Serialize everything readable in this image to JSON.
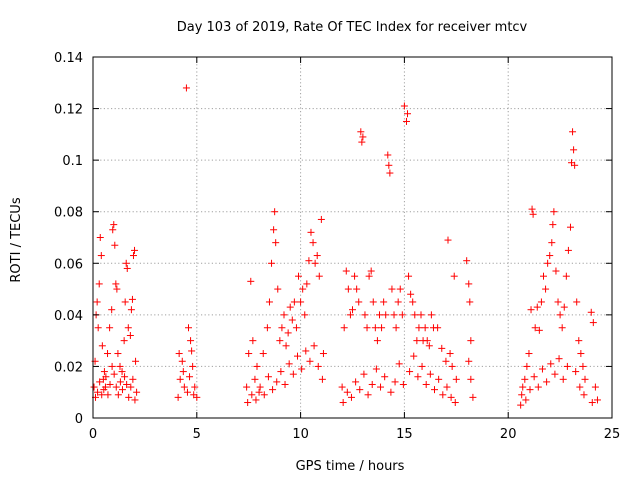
{
  "chart_data": {
    "type": "scatter",
    "title": "Day 103 of 2019, Rate Of TEC Index for receiver mtcv",
    "xlabel": "GPS time / hours",
    "ylabel": "ROTI / TECUs",
    "xlim": [
      0,
      25
    ],
    "ylim": [
      0,
      0.14
    ],
    "xticks": [
      0,
      5,
      10,
      15,
      20,
      25
    ],
    "yticks": [
      0,
      0.02,
      0.04,
      0.06,
      0.08,
      0.1,
      0.12,
      0.14
    ],
    "xtick_labels": [
      "0",
      "5",
      "10",
      "15",
      "20",
      "25"
    ],
    "ytick_labels": [
      "0",
      "0.02",
      "0.04",
      "0.06",
      "0.08",
      "0.1",
      "0.12",
      "0.14"
    ],
    "grid": true,
    "marker": "+",
    "color": "#ff0000",
    "series": [
      {
        "points": [
          [
            0.05,
            0.012
          ],
          [
            0.1,
            0.022
          ],
          [
            0.15,
            0.04
          ],
          [
            0.2,
            0.045
          ],
          [
            0.25,
            0.035
          ],
          [
            0.3,
            0.052
          ],
          [
            0.35,
            0.07
          ],
          [
            0.4,
            0.063
          ],
          [
            0.45,
            0.028
          ],
          [
            0.5,
            0.015
          ],
          [
            0.55,
            0.018
          ],
          [
            0.6,
            0.012
          ],
          [
            0.7,
            0.025
          ],
          [
            0.8,
            0.035
          ],
          [
            0.9,
            0.042
          ],
          [
            0.95,
            0.073
          ],
          [
            1.0,
            0.075
          ],
          [
            1.05,
            0.067
          ],
          [
            1.1,
            0.052
          ],
          [
            1.15,
            0.05
          ],
          [
            1.2,
            0.025
          ],
          [
            1.3,
            0.02
          ],
          [
            1.4,
            0.018
          ],
          [
            1.5,
            0.03
          ],
          [
            1.55,
            0.045
          ],
          [
            1.6,
            0.06
          ],
          [
            1.65,
            0.058
          ],
          [
            1.7,
            0.035
          ],
          [
            1.8,
            0.032
          ],
          [
            1.85,
            0.042
          ],
          [
            1.9,
            0.046
          ],
          [
            1.95,
            0.063
          ],
          [
            2.0,
            0.065
          ],
          [
            2.05,
            0.022
          ],
          [
            2.1,
            0.01
          ],
          [
            0.12,
            0.008
          ],
          [
            0.22,
            0.01
          ],
          [
            0.32,
            0.014
          ],
          [
            0.42,
            0.009
          ],
          [
            0.52,
            0.011
          ],
          [
            0.62,
            0.016
          ],
          [
            0.72,
            0.009
          ],
          [
            0.82,
            0.013
          ],
          [
            0.92,
            0.02
          ],
          [
            1.02,
            0.017
          ],
          [
            1.12,
            0.012
          ],
          [
            1.22,
            0.009
          ],
          [
            1.32,
            0.014
          ],
          [
            1.42,
            0.011
          ],
          [
            1.52,
            0.016
          ],
          [
            1.62,
            0.013
          ],
          [
            1.72,
            0.008
          ],
          [
            1.82,
            0.012
          ],
          [
            1.92,
            0.015
          ],
          [
            2.02,
            0.007
          ],
          [
            4.1,
            0.008
          ],
          [
            4.2,
            0.015
          ],
          [
            4.3,
            0.022
          ],
          [
            4.4,
            0.012
          ],
          [
            4.5,
            0.128
          ],
          [
            4.6,
            0.035
          ],
          [
            4.7,
            0.03
          ],
          [
            4.75,
            0.026
          ],
          [
            4.8,
            0.02
          ],
          [
            4.9,
            0.012
          ],
          [
            5.0,
            0.008
          ],
          [
            4.15,
            0.025
          ],
          [
            4.35,
            0.018
          ],
          [
            4.55,
            0.01
          ],
          [
            4.65,
            0.016
          ],
          [
            4.85,
            0.009
          ],
          [
            7.4,
            0.012
          ],
          [
            7.5,
            0.025
          ],
          [
            7.6,
            0.053
          ],
          [
            7.7,
            0.03
          ],
          [
            7.8,
            0.015
          ],
          [
            7.9,
            0.02
          ],
          [
            8.0,
            0.01
          ],
          [
            8.2,
            0.025
          ],
          [
            8.4,
            0.035
          ],
          [
            8.5,
            0.045
          ],
          [
            8.6,
            0.06
          ],
          [
            8.7,
            0.073
          ],
          [
            8.75,
            0.08
          ],
          [
            8.8,
            0.068
          ],
          [
            8.9,
            0.05
          ],
          [
            9.0,
            0.03
          ],
          [
            9.1,
            0.035
          ],
          [
            9.2,
            0.04
          ],
          [
            9.3,
            0.028
          ],
          [
            9.4,
            0.033
          ],
          [
            9.5,
            0.043
          ],
          [
            9.6,
            0.038
          ],
          [
            9.7,
            0.045
          ],
          [
            9.8,
            0.035
          ],
          [
            9.9,
            0.055
          ],
          [
            10.0,
            0.045
          ],
          [
            10.1,
            0.05
          ],
          [
            10.2,
            0.04
          ],
          [
            10.3,
            0.052
          ],
          [
            10.4,
            0.061
          ],
          [
            10.5,
            0.072
          ],
          [
            10.6,
            0.068
          ],
          [
            10.7,
            0.06
          ],
          [
            10.8,
            0.063
          ],
          [
            10.9,
            0.055
          ],
          [
            11.0,
            0.077
          ],
          [
            11.1,
            0.025
          ],
          [
            7.45,
            0.006
          ],
          [
            7.65,
            0.009
          ],
          [
            7.85,
            0.007
          ],
          [
            8.05,
            0.012
          ],
          [
            8.25,
            0.009
          ],
          [
            8.45,
            0.016
          ],
          [
            8.65,
            0.011
          ],
          [
            8.85,
            0.014
          ],
          [
            9.05,
            0.018
          ],
          [
            9.25,
            0.013
          ],
          [
            9.45,
            0.021
          ],
          [
            9.65,
            0.017
          ],
          [
            9.85,
            0.024
          ],
          [
            10.05,
            0.019
          ],
          [
            10.25,
            0.026
          ],
          [
            10.45,
            0.022
          ],
          [
            10.65,
            0.028
          ],
          [
            10.85,
            0.02
          ],
          [
            11.05,
            0.015
          ],
          [
            12.0,
            0.012
          ],
          [
            12.1,
            0.035
          ],
          [
            12.2,
            0.057
          ],
          [
            12.3,
            0.05
          ],
          [
            12.4,
            0.04
          ],
          [
            12.5,
            0.042
          ],
          [
            12.6,
            0.055
          ],
          [
            12.7,
            0.05
          ],
          [
            12.8,
            0.045
          ],
          [
            12.9,
            0.111
          ],
          [
            12.95,
            0.107
          ],
          [
            13.0,
            0.109
          ],
          [
            13.1,
            0.04
          ],
          [
            13.2,
            0.035
          ],
          [
            13.3,
            0.055
          ],
          [
            13.4,
            0.057
          ],
          [
            13.5,
            0.045
          ],
          [
            13.6,
            0.035
          ],
          [
            13.7,
            0.03
          ],
          [
            13.8,
            0.04
          ],
          [
            13.9,
            0.035
          ],
          [
            14.0,
            0.045
          ],
          [
            14.1,
            0.04
          ],
          [
            14.2,
            0.102
          ],
          [
            14.25,
            0.098
          ],
          [
            14.3,
            0.095
          ],
          [
            14.4,
            0.05
          ],
          [
            14.5,
            0.04
          ],
          [
            14.6,
            0.035
          ],
          [
            14.7,
            0.045
          ],
          [
            14.8,
            0.05
          ],
          [
            14.9,
            0.04
          ],
          [
            15.0,
            0.121
          ],
          [
            15.1,
            0.115
          ],
          [
            15.15,
            0.118
          ],
          [
            15.2,
            0.055
          ],
          [
            15.3,
            0.048
          ],
          [
            15.4,
            0.045
          ],
          [
            15.5,
            0.04
          ],
          [
            15.6,
            0.03
          ],
          [
            15.7,
            0.035
          ],
          [
            15.8,
            0.04
          ],
          [
            15.9,
            0.03
          ],
          [
            16.0,
            0.035
          ],
          [
            16.1,
            0.03
          ],
          [
            16.2,
            0.028
          ],
          [
            16.3,
            0.04
          ],
          [
            16.4,
            0.035
          ],
          [
            16.6,
            0.035
          ],
          [
            16.8,
            0.027
          ],
          [
            17.0,
            0.022
          ],
          [
            17.1,
            0.069
          ],
          [
            17.2,
            0.025
          ],
          [
            17.3,
            0.02
          ],
          [
            17.4,
            0.055
          ],
          [
            17.5,
            0.015
          ],
          [
            18.0,
            0.061
          ],
          [
            18.1,
            0.052
          ],
          [
            18.15,
            0.045
          ],
          [
            18.2,
            0.03
          ],
          [
            18.1,
            0.022
          ],
          [
            18.2,
            0.015
          ],
          [
            18.3,
            0.008
          ],
          [
            12.05,
            0.006
          ],
          [
            12.25,
            0.01
          ],
          [
            12.45,
            0.008
          ],
          [
            12.65,
            0.014
          ],
          [
            12.85,
            0.011
          ],
          [
            13.05,
            0.017
          ],
          [
            13.25,
            0.009
          ],
          [
            13.45,
            0.013
          ],
          [
            13.65,
            0.019
          ],
          [
            13.85,
            0.012
          ],
          [
            14.05,
            0.016
          ],
          [
            14.35,
            0.01
          ],
          [
            14.55,
            0.014
          ],
          [
            14.75,
            0.021
          ],
          [
            14.95,
            0.013
          ],
          [
            15.25,
            0.018
          ],
          [
            15.45,
            0.024
          ],
          [
            15.65,
            0.016
          ],
          [
            15.85,
            0.02
          ],
          [
            16.05,
            0.013
          ],
          [
            16.25,
            0.017
          ],
          [
            16.45,
            0.011
          ],
          [
            16.65,
            0.015
          ],
          [
            16.85,
            0.009
          ],
          [
            17.05,
            0.012
          ],
          [
            17.25,
            0.008
          ],
          [
            17.45,
            0.006
          ],
          [
            20.6,
            0.005
          ],
          [
            20.7,
            0.012
          ],
          [
            20.8,
            0.015
          ],
          [
            20.9,
            0.02
          ],
          [
            21.0,
            0.025
          ],
          [
            21.1,
            0.042
          ],
          [
            21.15,
            0.081
          ],
          [
            21.2,
            0.079
          ],
          [
            21.3,
            0.035
          ],
          [
            21.4,
            0.043
          ],
          [
            21.5,
            0.034
          ],
          [
            21.6,
            0.045
          ],
          [
            21.7,
            0.055
          ],
          [
            21.8,
            0.05
          ],
          [
            21.9,
            0.06
          ],
          [
            22.0,
            0.063
          ],
          [
            22.1,
            0.068
          ],
          [
            22.15,
            0.075
          ],
          [
            22.2,
            0.08
          ],
          [
            22.3,
            0.057
          ],
          [
            22.4,
            0.045
          ],
          [
            22.5,
            0.04
          ],
          [
            22.6,
            0.035
          ],
          [
            22.7,
            0.043
          ],
          [
            22.8,
            0.055
          ],
          [
            22.9,
            0.065
          ],
          [
            23.0,
            0.074
          ],
          [
            23.05,
            0.099
          ],
          [
            23.1,
            0.111
          ],
          [
            23.15,
            0.104
          ],
          [
            23.2,
            0.098
          ],
          [
            23.3,
            0.045
          ],
          [
            23.4,
            0.03
          ],
          [
            23.5,
            0.025
          ],
          [
            23.6,
            0.02
          ],
          [
            23.7,
            0.015
          ],
          [
            24.0,
            0.041
          ],
          [
            24.1,
            0.037
          ],
          [
            24.2,
            0.012
          ],
          [
            24.3,
            0.007
          ],
          [
            20.65,
            0.009
          ],
          [
            20.85,
            0.007
          ],
          [
            21.05,
            0.011
          ],
          [
            21.25,
            0.016
          ],
          [
            21.45,
            0.012
          ],
          [
            21.65,
            0.019
          ],
          [
            21.85,
            0.014
          ],
          [
            22.05,
            0.021
          ],
          [
            22.25,
            0.017
          ],
          [
            22.45,
            0.023
          ],
          [
            22.65,
            0.015
          ],
          [
            22.85,
            0.02
          ],
          [
            23.25,
            0.018
          ],
          [
            23.45,
            0.012
          ],
          [
            23.65,
            0.009
          ],
          [
            24.05,
            0.006
          ]
        ]
      }
    ]
  }
}
